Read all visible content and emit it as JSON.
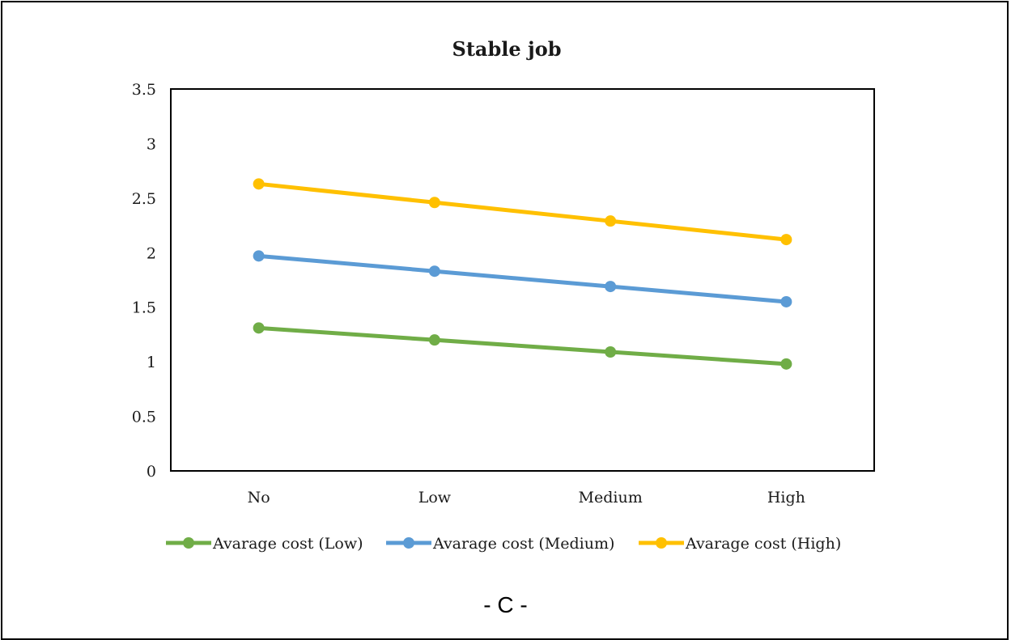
{
  "figure_label": "- C -",
  "chart_data": {
    "type": "line",
    "title": "Stable job",
    "xlabel": "",
    "ylabel": "",
    "categories": [
      "No",
      "Low",
      "Medium",
      "High"
    ],
    "ylim": [
      0,
      3.5
    ],
    "yticks": [
      "0",
      "0.5",
      "1",
      "1.5",
      "2",
      "2.5",
      "3",
      "3.5"
    ],
    "ytick_values": [
      0,
      0.5,
      1,
      1.5,
      2,
      2.5,
      3,
      3.5
    ],
    "grid": false,
    "legend_position": "bottom",
    "series": [
      {
        "name": "Avarage cost (Low)",
        "color": "#70ad47",
        "values": [
          1.31,
          1.2,
          1.09,
          0.98
        ]
      },
      {
        "name": "Avarage cost (Medium)",
        "color": "#5b9bd5",
        "values": [
          1.97,
          1.83,
          1.69,
          1.55
        ]
      },
      {
        "name": "Avarage cost (High)",
        "color": "#ffc000",
        "values": [
          2.63,
          2.46,
          2.29,
          2.12
        ]
      }
    ]
  }
}
